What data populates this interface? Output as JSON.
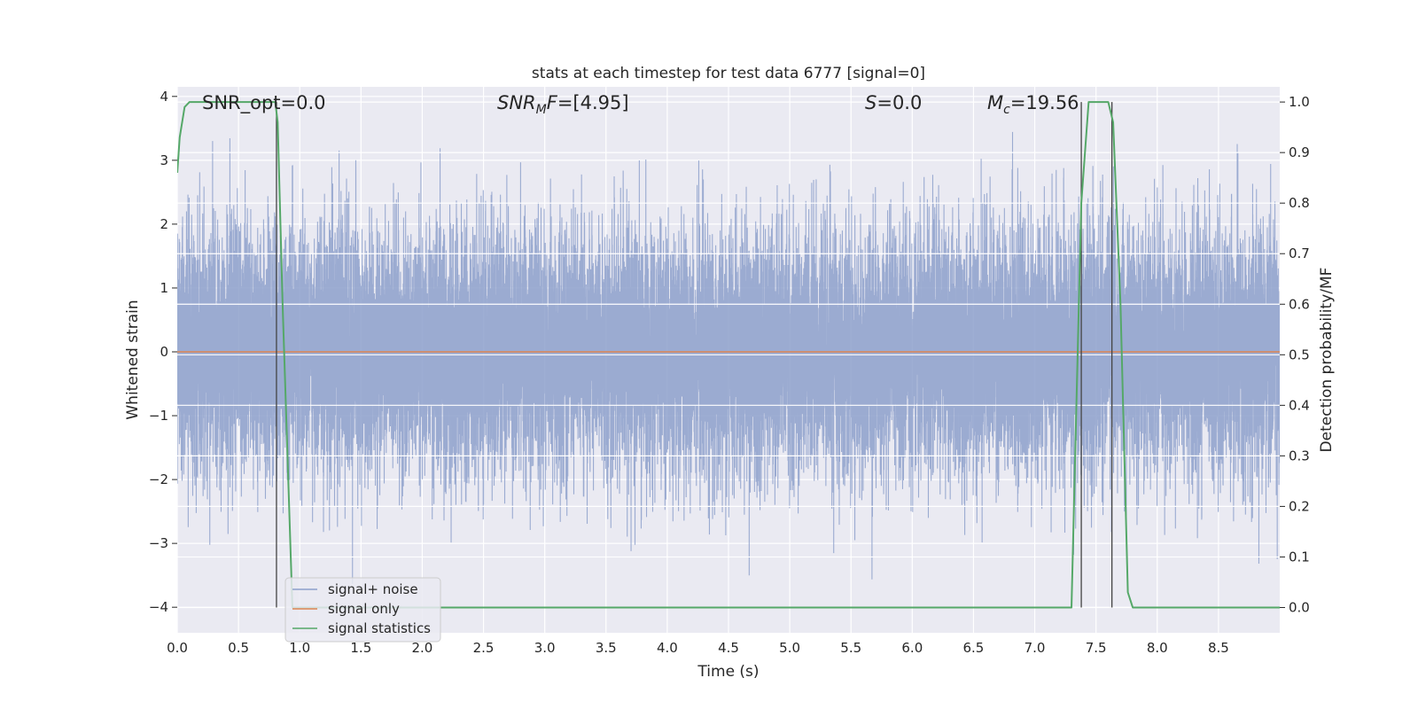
{
  "chart_data": {
    "type": "line",
    "title": "stats at each timestep for test data 6777 [signal=0]",
    "xlabel": "Time (s)",
    "ylabel": "Whitened strain",
    "y2label": "Detection probability/MF",
    "xlim": [
      0.0,
      9.0
    ],
    "ylim": [
      -4.4,
      4.15
    ],
    "y2lim": [
      -0.05,
      1.03
    ],
    "xticks": [
      "0.0",
      "0.5",
      "1.0",
      "1.5",
      "2.0",
      "2.5",
      "3.0",
      "3.5",
      "4.0",
      "4.5",
      "5.0",
      "5.5",
      "6.0",
      "6.5",
      "7.0",
      "7.5",
      "8.0",
      "8.5"
    ],
    "yticks": [
      "−4",
      "−3",
      "−2",
      "−1",
      "0",
      "1",
      "2",
      "3",
      "4"
    ],
    "y2ticks": [
      "0.0",
      "0.1",
      "0.2",
      "0.3",
      "0.4",
      "0.5",
      "0.6",
      "0.7",
      "0.8",
      "0.9",
      "1.0"
    ],
    "grid": true,
    "legend_position": "lower-left",
    "annotations": [
      {
        "id": "snr-opt",
        "text": "SNR_opt=0.0",
        "x": 0.19
      },
      {
        "id": "snr-mf",
        "text": "=[4.95]",
        "math": "SNR",
        "sub": "M",
        "tail": "F",
        "x": 2.6
      },
      {
        "id": "s",
        "text": "=0.0",
        "math": "S",
        "x": 5.6
      },
      {
        "id": "mc",
        "text": "=19.56",
        "math": "M",
        "sub": "c",
        "x": 6.6
      }
    ],
    "series": [
      {
        "name": "signal+ noise",
        "color": "#8da0cb",
        "axis": "left",
        "style": "noise",
        "sample_rate": 2048,
        "duration": 9.0,
        "envelope": [
          -1.7,
          1.8
        ]
      },
      {
        "name": "signal only",
        "color": "#dd8452",
        "axis": "left",
        "x": [
          0.0,
          9.0
        ],
        "y": [
          0.0,
          0.0
        ]
      },
      {
        "name": "signal statistics",
        "color": "#55a868",
        "axis": "right",
        "x": [
          0.0,
          0.02,
          0.06,
          0.1,
          0.2,
          0.5,
          0.8,
          0.82,
          0.86,
          0.9,
          0.94,
          1.0,
          7.3,
          7.34,
          7.38,
          7.44,
          7.6,
          7.64,
          7.7,
          7.76,
          7.8,
          9.0
        ],
        "y": [
          0.86,
          0.93,
          0.99,
          1.0,
          1.0,
          1.0,
          1.0,
          0.96,
          0.6,
          0.3,
          0.0,
          0.0,
          0.0,
          0.4,
          0.8,
          1.0,
          1.0,
          0.96,
          0.6,
          0.03,
          0.0,
          0.0
        ]
      }
    ],
    "vlines": [
      0.81,
      7.38,
      7.63
    ],
    "vline_color": "#444444"
  }
}
